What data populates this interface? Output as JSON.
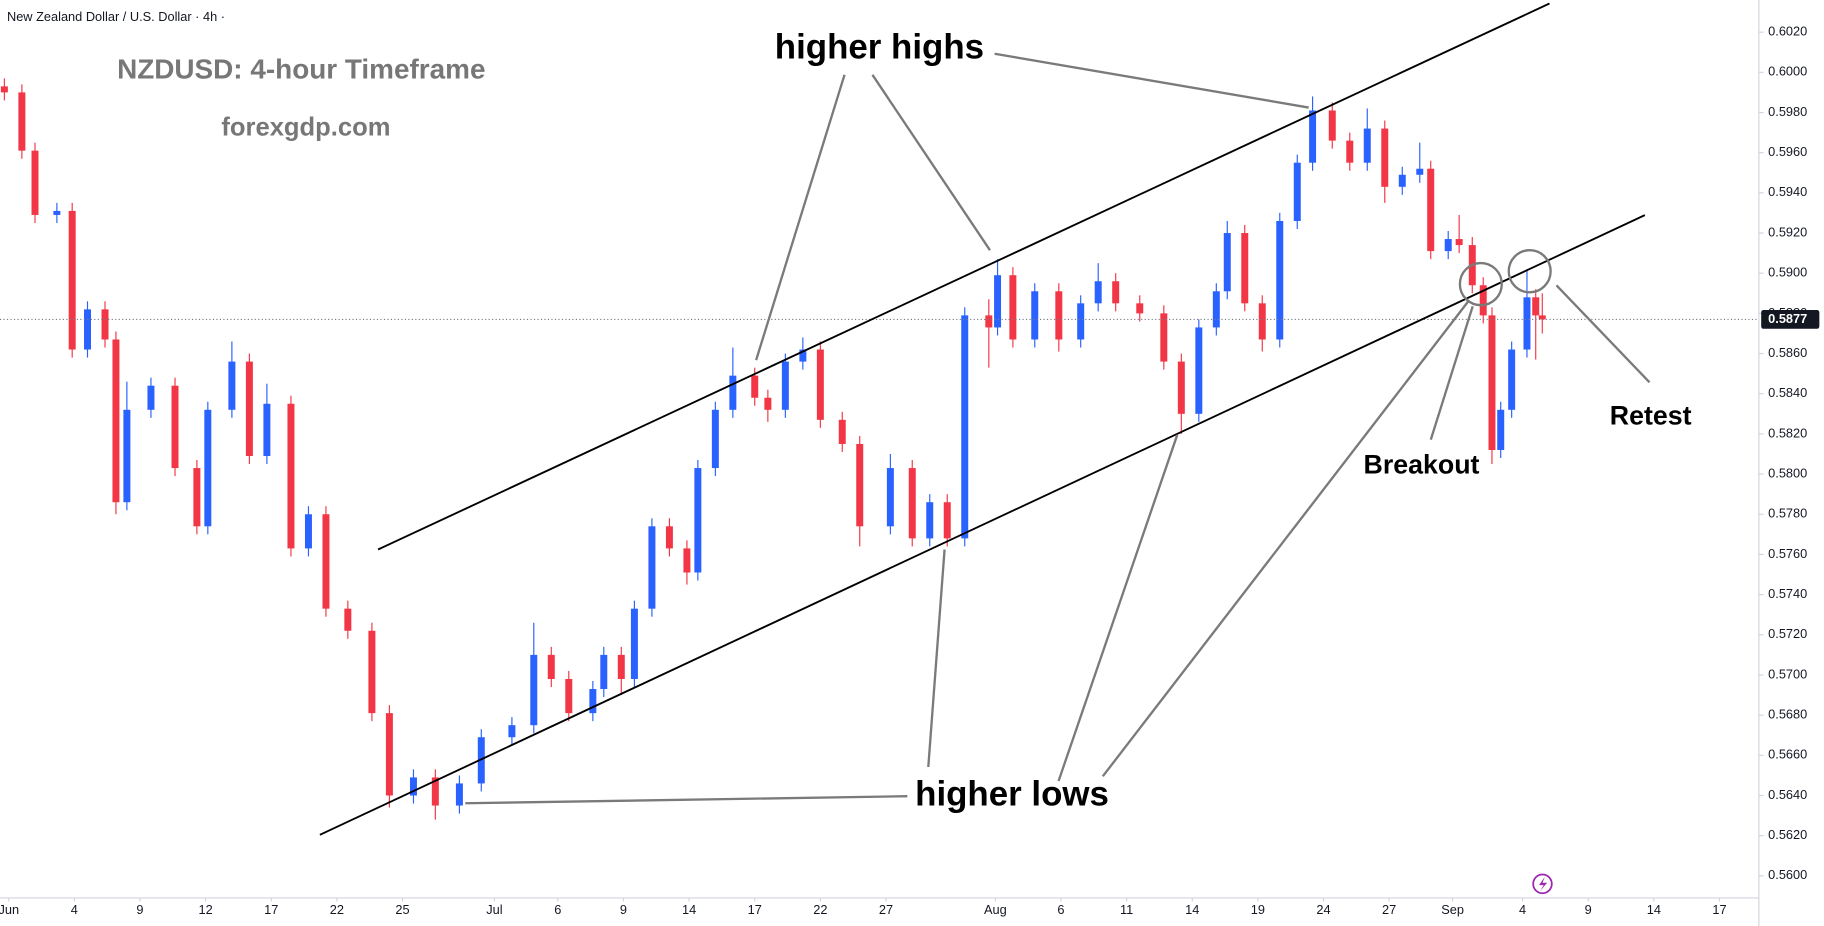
{
  "chart_data": {
    "type": "candlestick",
    "symbol": "New Zealand Dollar / U.S. Dollar · 4h ·",
    "title": "NZDUSD: 4-hour Timeframe",
    "subtitle": "forexgdp.com",
    "annotations": [
      "higher highs",
      "higher lows",
      "Breakout",
      "Retest"
    ],
    "up_color": "#2962ff",
    "down_color": "#f23645",
    "grid": false,
    "last_price": 0.5877,
    "xlim": [
      -0.4,
      80
    ],
    "ylim": [
      0.5589,
      0.6036
    ],
    "xticks": [
      {
        "value": 0,
        "label": "Jun"
      },
      {
        "value": 3.0,
        "label": "4"
      },
      {
        "value": 6.0,
        "label": "9"
      },
      {
        "value": 9.0,
        "label": "12"
      },
      {
        "value": 12.0,
        "label": "17"
      },
      {
        "value": 15.0,
        "label": "22"
      },
      {
        "value": 18.0,
        "label": "25"
      },
      {
        "value": 22.2,
        "label": "Jul"
      },
      {
        "value": 25.1,
        "label": "6"
      },
      {
        "value": 28.1,
        "label": "9"
      },
      {
        "value": 31.1,
        "label": "14"
      },
      {
        "value": 34.1,
        "label": "17"
      },
      {
        "value": 37.1,
        "label": "22"
      },
      {
        "value": 40.1,
        "label": "27"
      },
      {
        "value": 45.1,
        "label": "Aug"
      },
      {
        "value": 48.1,
        "label": "6"
      },
      {
        "value": 51.1,
        "label": "11"
      },
      {
        "value": 54.1,
        "label": "14"
      },
      {
        "value": 57.1,
        "label": "19"
      },
      {
        "value": 60.1,
        "label": "24"
      },
      {
        "value": 63.1,
        "label": "27"
      },
      {
        "value": 66.0,
        "label": "Sep"
      },
      {
        "value": 69.2,
        "label": "4"
      },
      {
        "value": 72.2,
        "label": "9"
      },
      {
        "value": 75.2,
        "label": "14"
      },
      {
        "value": 78.2,
        "label": "17"
      }
    ],
    "yticks": [
      {
        "value": 0.56,
        "label": "0.5600"
      },
      {
        "value": 0.562,
        "label": "0.5620"
      },
      {
        "value": 0.564,
        "label": "0.5640"
      },
      {
        "value": 0.566,
        "label": "0.5660"
      },
      {
        "value": 0.568,
        "label": "0.5680"
      },
      {
        "value": 0.57,
        "label": "0.5700"
      },
      {
        "value": 0.572,
        "label": "0.5720"
      },
      {
        "value": 0.574,
        "label": "0.5740"
      },
      {
        "value": 0.576,
        "label": "0.5760"
      },
      {
        "value": 0.578,
        "label": "0.5780"
      },
      {
        "value": 0.58,
        "label": "0.5800"
      },
      {
        "value": 0.582,
        "label": "0.5820"
      },
      {
        "value": 0.584,
        "label": "0.5840"
      },
      {
        "value": 0.586,
        "label": "0.5860"
      },
      {
        "value": 0.588,
        "label": "0.5880"
      },
      {
        "value": 0.59,
        "label": "0.5900"
      },
      {
        "value": 0.592,
        "label": "0.5920"
      },
      {
        "value": 0.594,
        "label": "0.5940"
      },
      {
        "value": 0.596,
        "label": "0.5960"
      },
      {
        "value": 0.598,
        "label": "0.5980"
      },
      {
        "value": 0.6,
        "label": "0.6000"
      },
      {
        "value": 0.602,
        "label": "0.6020"
      }
    ],
    "x": [
      -0.2,
      0.6,
      1.2,
      2.2,
      2.9,
      3.6,
      4.4,
      4.9,
      5.4,
      6.5,
      7.6,
      8.6,
      9.1,
      10.2,
      11.0,
      11.8,
      12.9,
      13.7,
      14.5,
      15.5,
      16.6,
      17.4,
      18.5,
      19.5,
      20.6,
      21.6,
      23.0,
      24.0,
      24.8,
      25.6,
      26.7,
      27.2,
      28.0,
      28.6,
      29.4,
      30.2,
      31.0,
      31.5,
      32.3,
      33.1,
      34.1,
      34.7,
      35.5,
      36.3,
      37.1,
      38.1,
      38.9,
      40.3,
      41.3,
      42.1,
      42.9,
      43.7,
      44.8,
      45.2,
      45.9,
      46.9,
      48.0,
      49.0,
      49.8,
      50.6,
      51.7,
      52.8,
      53.6,
      54.4,
      55.2,
      55.7,
      56.5,
      57.3,
      58.1,
      58.9,
      59.6,
      60.5,
      61.3,
      62.1,
      62.9,
      63.7,
      64.5,
      65.0,
      65.8,
      66.3,
      66.9,
      67.4,
      67.8,
      68.2,
      68.7,
      69.4,
      69.8,
      70.1
    ],
    "open": [
      0.5993,
      0.599,
      0.5961,
      0.5929,
      0.5931,
      0.5862,
      0.5882,
      0.5867,
      0.5786,
      0.5832,
      0.5844,
      0.5803,
      0.5774,
      0.5832,
      0.5856,
      0.5809,
      0.5835,
      0.5763,
      0.578,
      0.5733,
      0.5722,
      0.5681,
      0.564,
      0.5649,
      0.5635,
      0.5646,
      0.5669,
      0.5675,
      0.571,
      0.5698,
      0.5681,
      0.5693,
      0.571,
      0.5698,
      0.5733,
      0.5774,
      0.5763,
      0.5751,
      0.5803,
      0.5832,
      0.5849,
      0.5838,
      0.5832,
      0.5856,
      0.5862,
      0.5827,
      0.5815,
      0.5774,
      0.5803,
      0.5768,
      0.5786,
      0.5768,
      0.5879,
      0.5873,
      0.5899,
      0.5867,
      0.5891,
      0.5867,
      0.5885,
      0.5896,
      0.5885,
      0.588,
      0.5856,
      0.583,
      0.5873,
      0.5891,
      0.592,
      0.5885,
      0.5867,
      0.5926,
      0.5955,
      0.5981,
      0.5966,
      0.5955,
      0.5972,
      0.5943,
      0.5949,
      0.5952,
      0.5911,
      0.5917,
      0.5914,
      0.5894,
      0.5879,
      0.5812,
      0.5832,
      0.5862,
      0.5888,
      0.5879
    ],
    "high": [
      0.5997,
      0.5994,
      0.5965,
      0.5935,
      0.5935,
      0.5886,
      0.5886,
      0.5871,
      0.5846,
      0.5848,
      0.5848,
      0.5807,
      0.5836,
      0.5866,
      0.586,
      0.5845,
      0.5839,
      0.5784,
      0.5784,
      0.5737,
      0.5726,
      0.5685,
      0.5653,
      0.5653,
      0.565,
      0.5673,
      0.5679,
      0.5726,
      0.5714,
      0.5702,
      0.5697,
      0.5714,
      0.5714,
      0.5737,
      0.5778,
      0.5778,
      0.5767,
      0.5807,
      0.5836,
      0.5863,
      0.5853,
      0.5842,
      0.586,
      0.5868,
      0.5866,
      0.5831,
      0.5819,
      0.581,
      0.5807,
      0.579,
      0.579,
      0.5883,
      0.5887,
      0.5907,
      0.5903,
      0.5895,
      0.5895,
      0.5889,
      0.5905,
      0.59,
      0.5889,
      0.5884,
      0.586,
      0.5877,
      0.5895,
      0.5926,
      0.5924,
      0.5889,
      0.593,
      0.5959,
      0.5988,
      0.5985,
      0.597,
      0.5982,
      0.5976,
      0.5953,
      0.5965,
      0.5956,
      0.5921,
      0.5929,
      0.5918,
      0.5898,
      0.5883,
      0.5836,
      0.5866,
      0.5902,
      0.5892,
      0.589
    ],
    "low": [
      0.5986,
      0.5957,
      0.5925,
      0.5925,
      0.5858,
      0.5858,
      0.5863,
      0.578,
      0.5782,
      0.5828,
      0.5799,
      0.577,
      0.577,
      0.5828,
      0.5805,
      0.5805,
      0.5759,
      0.5759,
      0.5729,
      0.5718,
      0.5677,
      0.5634,
      0.5636,
      0.5628,
      0.5631,
      0.5642,
      0.5665,
      0.5671,
      0.5694,
      0.5677,
      0.5677,
      0.5689,
      0.569,
      0.5694,
      0.5729,
      0.5759,
      0.5745,
      0.5747,
      0.5799,
      0.5828,
      0.5834,
      0.5826,
      0.5828,
      0.5852,
      0.5823,
      0.5811,
      0.5764,
      0.577,
      0.5764,
      0.5764,
      0.5764,
      0.5764,
      0.5853,
      0.5869,
      0.5863,
      0.5863,
      0.5861,
      0.5863,
      0.5881,
      0.5881,
      0.5876,
      0.5852,
      0.582,
      0.5826,
      0.5869,
      0.5887,
      0.5881,
      0.5861,
      0.5863,
      0.5922,
      0.5951,
      0.5962,
      0.5951,
      0.5951,
      0.5935,
      0.5939,
      0.5945,
      0.5907,
      0.5907,
      0.591,
      0.589,
      0.5875,
      0.5805,
      0.5808,
      0.5828,
      0.5858,
      0.5857,
      0.587
    ],
    "close": [
      0.599,
      0.5961,
      0.5929,
      0.5931,
      0.5862,
      0.5882,
      0.5867,
      0.5786,
      0.5832,
      0.5844,
      0.5803,
      0.5774,
      0.5832,
      0.5856,
      0.5809,
      0.5835,
      0.5763,
      0.578,
      0.5733,
      0.5722,
      0.5681,
      0.564,
      0.5649,
      0.5635,
      0.5646,
      0.5669,
      0.5675,
      0.571,
      0.5698,
      0.5681,
      0.5693,
      0.571,
      0.5698,
      0.5733,
      0.5774,
      0.5763,
      0.5751,
      0.5803,
      0.5832,
      0.5849,
      0.5838,
      0.5832,
      0.5856,
      0.5862,
      0.5827,
      0.5815,
      0.5774,
      0.5803,
      0.5768,
      0.5786,
      0.5768,
      0.5879,
      0.5873,
      0.5899,
      0.5867,
      0.5891,
      0.5867,
      0.5885,
      0.5896,
      0.5885,
      0.588,
      0.5856,
      0.583,
      0.5873,
      0.5891,
      0.592,
      0.5885,
      0.5867,
      0.5926,
      0.5955,
      0.5981,
      0.5966,
      0.5955,
      0.5972,
      0.5943,
      0.5949,
      0.5952,
      0.5911,
      0.5917,
      0.5914,
      0.5894,
      0.5879,
      0.5812,
      0.5832,
      0.5862,
      0.5888,
      0.5879,
      0.5877
    ]
  }
}
